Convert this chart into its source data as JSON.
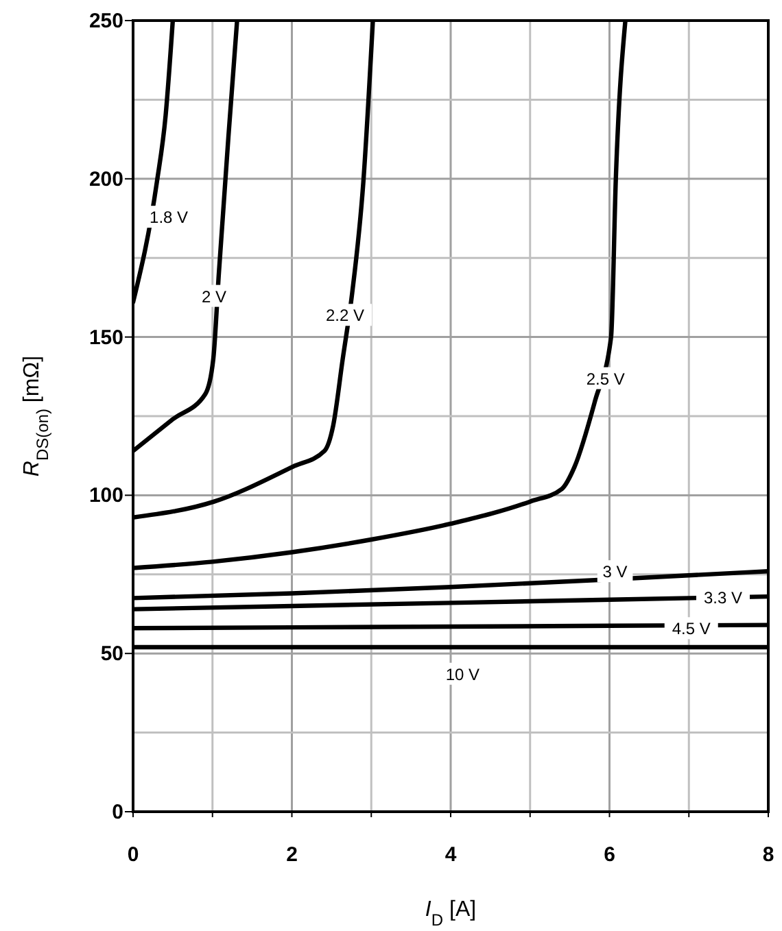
{
  "chart_data": {
    "type": "line",
    "xlabel": "I$_{D}$ [A]",
    "ylabel": "R$_{DS(on)}$ [mΩ]",
    "xlim": [
      0,
      8
    ],
    "ylim": [
      0,
      250
    ],
    "xticks": [
      0,
      {
        "value": 1,
        "label": null
      },
      2,
      {
        "value": 3,
        "label": null
      },
      4,
      {
        "value": 5,
        "label": null
      },
      6,
      {
        "value": 7,
        "label": null
      },
      8
    ],
    "yticks": [
      0,
      {
        "value": 25,
        "label": null
      },
      50,
      {
        "value": 75,
        "label": null
      },
      100,
      {
        "value": 125,
        "label": null
      },
      150,
      {
        "value": 175,
        "label": null
      },
      200,
      {
        "value": 225,
        "label": null
      },
      250
    ],
    "grid": true,
    "marker": "none",
    "line_style": "solid",
    "series": [
      {
        "color": "#000000",
        "x": [
          0,
          0.3,
          0.41,
          0.5
        ],
        "values": [
          161,
          199,
          220,
          250
        ]
      },
      {
        "color": "#000000",
        "x": [
          0,
          0.5,
          0.91,
          1.01,
          1.08,
          1.2,
          1.31
        ],
        "values": [
          114,
          124,
          132,
          143,
          170,
          213,
          250
        ]
      },
      {
        "color": "#000000",
        "x": [
          0,
          1.02,
          2.01,
          2.41,
          2.52,
          2.64,
          2.76,
          2.9,
          3.02
        ],
        "values": [
          93,
          98,
          109,
          114,
          122,
          143,
          164,
          199,
          250
        ]
      },
      {
        "color": "#000000",
        "x": [
          0,
          1,
          2,
          3,
          4,
          5,
          5.4,
          5.56,
          5.82,
          6.02,
          6.08,
          6.2
        ],
        "values": [
          77,
          79,
          82,
          86,
          91,
          98,
          102,
          109,
          130,
          150,
          200,
          250
        ]
      },
      {
        "color": "#000000",
        "x": [
          0,
          2,
          4,
          6,
          8
        ],
        "values": [
          67.5,
          69,
          71,
          73.4,
          76
        ]
      },
      {
        "color": "#000000",
        "x": [
          0,
          4,
          8
        ],
        "values": [
          64,
          66,
          68
        ]
      },
      {
        "color": "#000000",
        "x": [
          0,
          4,
          8
        ],
        "values": [
          58,
          58.5,
          59
        ]
      },
      {
        "color": "#000000",
        "x": [
          0,
          8
        ],
        "values": [
          52,
          52
        ]
      }
    ],
    "annotations": [
      {
        "text": "1.8 V",
        "x": 0.45,
        "y": 188
      },
      {
        "text": "2 V",
        "x": 1.02,
        "y": 163
      },
      {
        "text": "2.2 V",
        "x": 2.67,
        "y": 157
      },
      {
        "text": "2.5 V",
        "x": 5.95,
        "y": 137
      },
      {
        "text": "3 V",
        "x": 6.07,
        "y": 76
      },
      {
        "text": "3.3 V",
        "x": 7.43,
        "y": 67.7
      },
      {
        "text": "4.5 V",
        "x": 7.03,
        "y": 58
      },
      {
        "text": "10 V",
        "x": 4.15,
        "y": 43.6
      }
    ]
  }
}
